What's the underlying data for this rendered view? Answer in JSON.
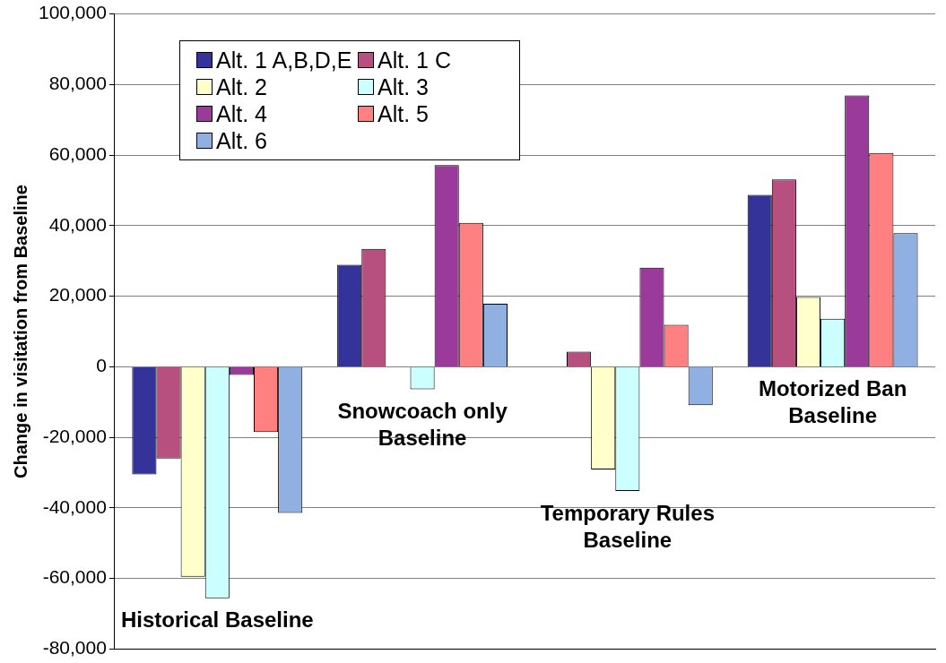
{
  "chart_data": {
    "type": "bar",
    "ylabel": "Change in visitation from Baseline",
    "categories": [
      "Historical Baseline",
      "Snowcoach only Baseline",
      "Temporary Rules Baseline",
      "Motorized Ban Baseline"
    ],
    "series": [
      {
        "name": "Alt. 1 A,B,D,E",
        "color": "#333399",
        "values": [
          -30500,
          28900,
          0,
          48700
        ]
      },
      {
        "name": "Alt. 1 C",
        "color": "#b8507f",
        "values": [
          -26000,
          33400,
          4300,
          53100
        ]
      },
      {
        "name": "Alt. 2",
        "color": "#ffffcc",
        "values": [
          -59500,
          0,
          -29100,
          19800
        ]
      },
      {
        "name": "Alt. 3",
        "color": "#ccffff",
        "values": [
          -65600,
          -6400,
          -35200,
          13600
        ]
      },
      {
        "name": "Alt. 4",
        "color": "#9a3a9a",
        "values": [
          -2300,
          57200,
          28100,
          76900
        ]
      },
      {
        "name": "Alt. 5",
        "color": "#ff8080",
        "values": [
          -18500,
          40800,
          11900,
          60600
        ]
      },
      {
        "name": "Alt. 6",
        "color": "#8fb0e0",
        "values": [
          -41400,
          17900,
          -10900,
          37900
        ]
      }
    ],
    "ylim": [
      -80000,
      100000
    ],
    "yticks": [
      {
        "value": -80000,
        "label": "-80,000"
      },
      {
        "value": -60000,
        "label": "-60,000"
      },
      {
        "value": -40000,
        "label": "-40,000"
      },
      {
        "value": -20000,
        "label": "-20,000"
      },
      0,
      {
        "value": 20000,
        "label": "20,000"
      },
      {
        "value": 40000,
        "label": "40,000"
      },
      {
        "value": 60000,
        "label": "60,000"
      },
      {
        "value": 80000,
        "label": "80,000"
      },
      {
        "value": 100000,
        "label": "100,000"
      }
    ],
    "grid": "y",
    "legend": "top left",
    "tick_labels": "y"
  }
}
